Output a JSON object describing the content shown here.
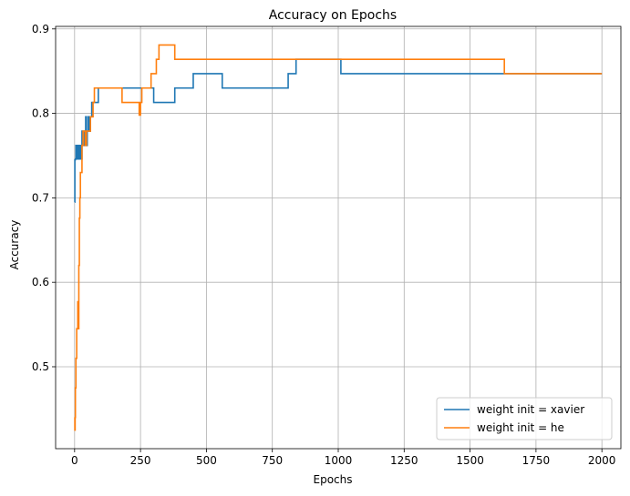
{
  "chart_data": {
    "type": "line",
    "title": "Accuracy on Epochs",
    "xlabel": "Epochs",
    "ylabel": "Accuracy",
    "xlim": [
      -72,
      2072
    ],
    "ylim": [
      0.403,
      0.903
    ],
    "xticks": [
      0,
      250,
      500,
      750,
      1000,
      1250,
      1500,
      1750,
      2000
    ],
    "xtick_labels": [
      "0",
      "250",
      "500",
      "750",
      "1000",
      "1250",
      "1500",
      "1750",
      "2000"
    ],
    "yticks": [
      0.5,
      0.6,
      0.7,
      0.8,
      0.9
    ],
    "ytick_labels": [
      "0.5",
      "0.6",
      "0.7",
      "0.8",
      "0.9"
    ],
    "grid": true,
    "legend_position": "lower-right",
    "step": true,
    "series": [
      {
        "name": "weight init = xavier",
        "color": "#1f77b4",
        "x": [
          0,
          1,
          2,
          3,
          5,
          8,
          10,
          12,
          15,
          18,
          20,
          24,
          28,
          32,
          38,
          42,
          45,
          48,
          52,
          55,
          60,
          65,
          70,
          75,
          90,
          100,
          150,
          200,
          250,
          300,
          380,
          450,
          500,
          560,
          700,
          810,
          840,
          1000,
          1010,
          1500,
          1625,
          2000
        ],
        "y": [
          0.695,
          0.745,
          0.745,
          0.746,
          0.762,
          0.746,
          0.762,
          0.746,
          0.762,
          0.746,
          0.762,
          0.746,
          0.779,
          0.762,
          0.779,
          0.796,
          0.762,
          0.779,
          0.796,
          0.779,
          0.796,
          0.813,
          0.813,
          0.813,
          0.83,
          0.83,
          0.83,
          0.83,
          0.83,
          0.813,
          0.83,
          0.847,
          0.847,
          0.83,
          0.83,
          0.847,
          0.864,
          0.864,
          0.847,
          0.847,
          0.847,
          0.847
        ]
      },
      {
        "name": "weight init = he",
        "color": "#ff7f0e",
        "x": [
          0,
          1,
          2,
          3,
          5,
          8,
          10,
          12,
          14,
          16,
          18,
          20,
          22,
          25,
          28,
          32,
          36,
          40,
          45,
          50,
          55,
          60,
          65,
          70,
          75,
          80,
          100,
          180,
          240,
          245,
          250,
          255,
          260,
          290,
          300,
          310,
          320,
          330,
          370,
          380,
          1000,
          1625,
          1630,
          2000
        ],
        "y": [
          0.44,
          0.425,
          0.44,
          0.475,
          0.51,
          0.545,
          0.545,
          0.577,
          0.545,
          0.62,
          0.676,
          0.7,
          0.73,
          0.73,
          0.762,
          0.779,
          0.779,
          0.762,
          0.779,
          0.779,
          0.779,
          0.796,
          0.796,
          0.813,
          0.83,
          0.83,
          0.83,
          0.813,
          0.813,
          0.798,
          0.813,
          0.83,
          0.83,
          0.847,
          0.847,
          0.864,
          0.881,
          0.881,
          0.881,
          0.864,
          0.864,
          0.864,
          0.847,
          0.847
        ]
      }
    ]
  }
}
